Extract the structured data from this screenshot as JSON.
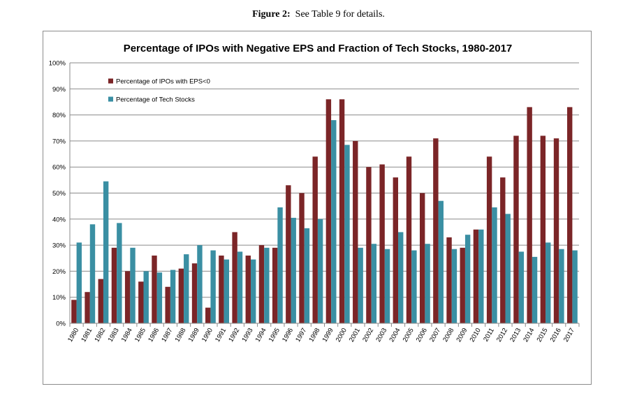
{
  "figure_caption": {
    "label": "Figure 2:",
    "text": "See Table 9 for details."
  },
  "chart_data": {
    "type": "bar",
    "title": "Percentage of IPOs with Negative EPS and Fraction of Tech Stocks, 1980-2017",
    "xlabel": "",
    "ylabel": "",
    "ylim": [
      0,
      100
    ],
    "yticks": [
      "0%",
      "10%",
      "20%",
      "30%",
      "40%",
      "50%",
      "60%",
      "70%",
      "80%",
      "90%",
      "100%"
    ],
    "grid": true,
    "legend_position": "top-left",
    "categories": [
      "1980",
      "1981",
      "1982",
      "1983",
      "1984",
      "1985",
      "1986",
      "1987",
      "1988",
      "1989",
      "1990",
      "1991",
      "1992",
      "1993",
      "1994",
      "1995",
      "1996",
      "1997",
      "1998",
      "1999",
      "2000",
      "2001",
      "2002",
      "2003",
      "2004",
      "2005",
      "2006",
      "2007",
      "2008",
      "2009",
      "2010",
      "2011",
      "2012",
      "2013",
      "2014",
      "2015",
      "2016",
      "2017"
    ],
    "series": [
      {
        "name": "Percentage of IPOs with EPS<0",
        "color": "#7b2527",
        "values": [
          9,
          12,
          17,
          29,
          20,
          16,
          26,
          14,
          21,
          23,
          6,
          26,
          35,
          26,
          30,
          29,
          53,
          50,
          64,
          86,
          86,
          70,
          60,
          61,
          56,
          64,
          50,
          71,
          33,
          29,
          36,
          64,
          56,
          72,
          83,
          72,
          71,
          83
        ]
      },
      {
        "name": "Percentage of Tech Stocks",
        "color": "#3a8fa3",
        "values": [
          31,
          38,
          54.5,
          38.5,
          29,
          20,
          19.5,
          20.5,
          26.5,
          30,
          28,
          24.5,
          27.5,
          24.5,
          29,
          44.5,
          40.5,
          36.5,
          40,
          78,
          68.5,
          29,
          30.5,
          28.5,
          35,
          28,
          30.5,
          47,
          28.5,
          34,
          36,
          44.5,
          42,
          27.5,
          25.5,
          31,
          28.5,
          28
        ]
      }
    ]
  }
}
